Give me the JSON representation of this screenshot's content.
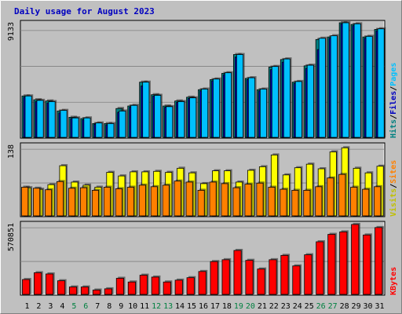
{
  "chart_data": {
    "type": "bar",
    "title": "Daily usage for August 2023",
    "days": [
      "1",
      "2",
      "3",
      "4",
      "5",
      "6",
      "7",
      "8",
      "9",
      "10",
      "11",
      "12",
      "13",
      "14",
      "15",
      "16",
      "17",
      "18",
      "19",
      "20",
      "21",
      "22",
      "23",
      "24",
      "25",
      "26",
      "27",
      "28",
      "29",
      "30",
      "31"
    ],
    "weekend_days": [
      "5",
      "6",
      "12",
      "13",
      "19",
      "20",
      "26",
      "27"
    ],
    "panels": [
      {
        "name": "hits-panel",
        "max_label": "9133",
        "ymax": 9133,
        "right_labels": [
          {
            "text": "Hits",
            "color": "#008080"
          },
          {
            "text": "/",
            "color": "#000000"
          },
          {
            "text": "Files",
            "color": "#0000c0"
          },
          {
            "text": "/",
            "color": "#000000"
          },
          {
            "text": "Pages",
            "color": "#00c0ff"
          }
        ],
        "series": [
          {
            "name": "Hits",
            "color": "#008080",
            "values": [
              3300,
              3000,
              2900,
              2100,
              1600,
              1500,
              1100,
              1100,
              2300,
              2500,
              4400,
              3400,
              2500,
              2900,
              3200,
              3800,
              4600,
              5100,
              6600,
              4700,
              3800,
              5600,
              6200,
              4400,
              5700,
              7800,
              8000,
              9133,
              9000,
              8000,
              8600
            ]
          },
          {
            "name": "Files",
            "color": "#0000c0",
            "values": [
              3200,
              2850,
              2750,
              1950,
              1500,
              1400,
              1050,
              1000,
              2000,
              2400,
              4100,
              3300,
              2400,
              2800,
              3100,
              3700,
              4500,
              5000,
              6400,
              4600,
              3700,
              5400,
              6000,
              4300,
              5500,
              7000,
              7900,
              9050,
              8900,
              7900,
              8500
            ]
          },
          {
            "name": "Pages",
            "color": "#00c0ff",
            "values": [
              3300,
              2950,
              2850,
              2150,
              1550,
              1550,
              1150,
              1100,
              2100,
              2550,
              4400,
              3350,
              2450,
              2850,
              3150,
              3850,
              4650,
              5150,
              6600,
              4750,
              3850,
              5650,
              6250,
              4450,
              5750,
              7900,
              8100,
              9133,
              9050,
              8050,
              8650
            ]
          }
        ]
      },
      {
        "name": "visits-panel",
        "max_label": "138",
        "ymax": 138,
        "right_labels": [
          {
            "text": "Visits",
            "color": "#c0c000"
          },
          {
            "text": "/",
            "color": "#000000"
          },
          {
            "text": "Sites",
            "color": "#ff8000"
          }
        ],
        "series": [
          {
            "name": "Visits",
            "color": "#ffff00",
            "values": [
              55,
              52,
              61,
              98,
              66,
              60,
              56,
              85,
              78,
              86,
              86,
              87,
              85,
              93,
              84,
              63,
              88,
              88,
              66,
              89,
              96,
              119,
              80,
              94,
              101,
              92,
              125,
              133,
              93,
              84,
              97
            ]
          },
          {
            "name": "Sites",
            "color": "#ff8000",
            "values": [
              56,
              54,
              51,
              67,
              54,
              55,
              50,
              56,
              53,
              56,
              60,
              57,
              60,
              68,
              66,
              50,
              66,
              63,
              55,
              62,
              64,
              56,
              52,
              50,
              50,
              57,
              74,
              81,
              56,
              52,
              57
            ]
          }
        ]
      },
      {
        "name": "kbytes-panel",
        "max_label": "570851",
        "ymax": 570851,
        "right_labels": [
          {
            "text": "KBytes",
            "color": "#ff0000"
          }
        ],
        "series": [
          {
            "name": "KBytes",
            "color": "#ff0000",
            "values": [
              120000,
              175000,
              165000,
              110000,
              60000,
              60000,
              35000,
              45000,
              130000,
              100000,
              155000,
              140000,
              100000,
              115000,
              135000,
              185000,
              265000,
              280000,
              355000,
              275000,
              205000,
              280000,
              315000,
              230000,
              320000,
              425000,
              485000,
              505000,
              565000,
              480000,
              540000
            ]
          }
        ]
      }
    ]
  }
}
